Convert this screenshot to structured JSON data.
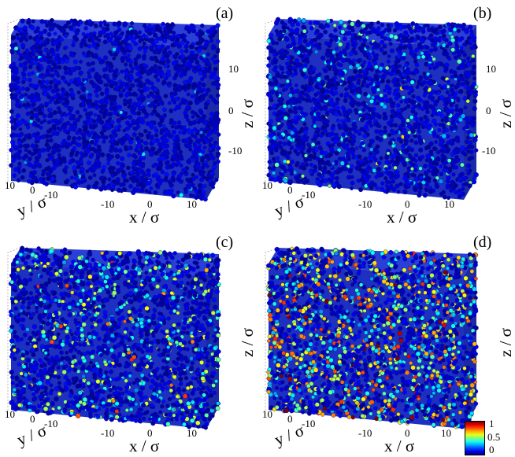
{
  "panels": [
    {
      "id": "a",
      "label": "(a)",
      "seed": 11,
      "density": 0.015,
      "intensity": 0.18,
      "show_z": true,
      "show_colorbar": false
    },
    {
      "id": "b",
      "label": "(b)",
      "seed": 23,
      "density": 0.09,
      "intensity": 0.38,
      "show_z": true,
      "show_colorbar": false
    },
    {
      "id": "c",
      "label": "(c)",
      "seed": 37,
      "density": 0.22,
      "intensity": 0.55,
      "show_z": false,
      "show_colorbar": false
    },
    {
      "id": "d",
      "label": "(d)",
      "seed": 53,
      "density": 0.45,
      "intensity": 0.85,
      "show_z": false,
      "show_colorbar": true
    }
  ],
  "axes": {
    "x_label": "x / σ",
    "y_label": "y / σ",
    "z_label": "z / σ",
    "x_ticks": [
      "-10",
      "0",
      "10"
    ],
    "y_ticks": [
      "10",
      "0",
      "-10"
    ],
    "z_ticks": [
      "10",
      "0",
      "-10"
    ]
  },
  "colorbar": {
    "ticks": [
      "1",
      "0.5",
      "0"
    ],
    "colormap": "jet",
    "range": [
      0,
      1
    ]
  },
  "colors": {
    "base": "#1f33c9",
    "edge": "#0e1a6e"
  }
}
